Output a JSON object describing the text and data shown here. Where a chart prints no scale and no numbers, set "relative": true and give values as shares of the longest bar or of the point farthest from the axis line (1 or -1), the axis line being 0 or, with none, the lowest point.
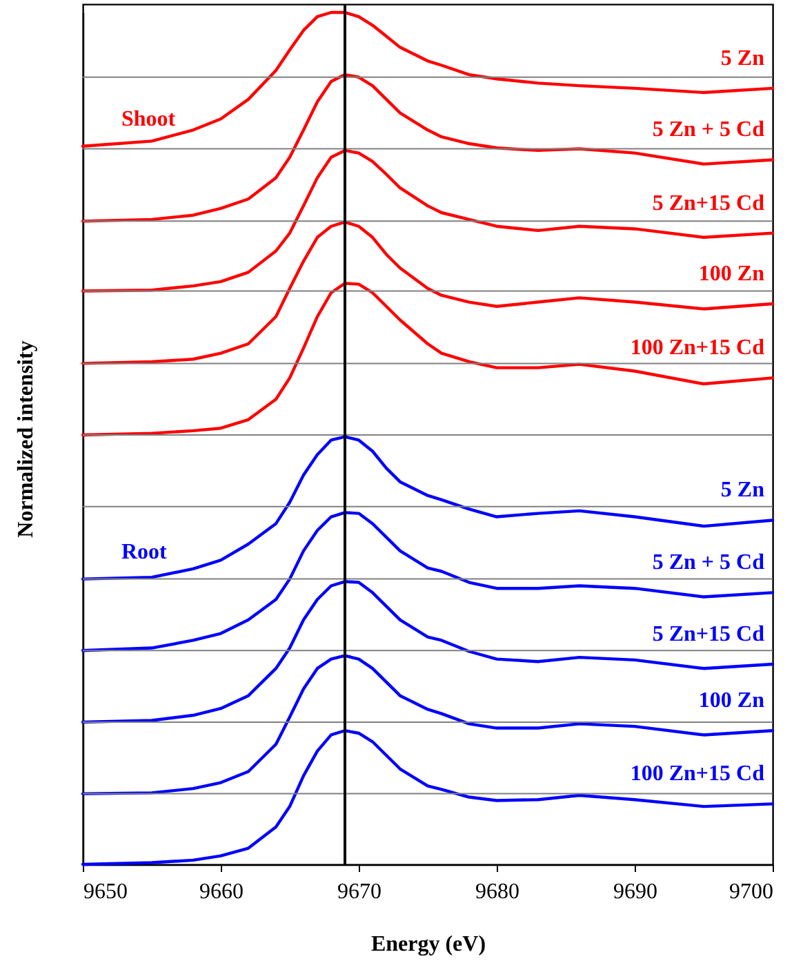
{
  "chart_data": {
    "type": "line",
    "relative": true,
    "xlabel": "Energy (eV)",
    "ylabel": "Normalized intensity",
    "xlim": [
      9650,
      9700
    ],
    "xticks": [
      9650,
      9660,
      9670,
      9680,
      9690,
      9700
    ],
    "tick_labels": "x",
    "x": [
      9650,
      9655,
      9658,
      9660,
      9662,
      9664,
      9665,
      9666,
      9667,
      9668,
      9669,
      9670,
      9671,
      9672,
      9673,
      9675,
      9676,
      9678,
      9680,
      9683,
      9686,
      9690,
      9695,
      9700
    ],
    "series": [
      {
        "name": "5 Zn",
        "color": "#ff0000",
        "values": [
          0.843,
          0.849,
          0.862,
          0.875,
          0.898,
          0.932,
          0.956,
          0.979,
          0.995,
          1,
          1,
          0.995,
          0.985,
          0.972,
          0.959,
          0.943,
          0.938,
          0.927,
          0.922,
          0.917,
          0.914,
          0.911,
          0.906,
          0.911
        ]
      },
      {
        "name": "5 Zn + 5 Cd",
        "color": "#ff0000",
        "values": [
          0.755,
          0.757,
          0.762,
          0.77,
          0.781,
          0.806,
          0.83,
          0.862,
          0.895,
          0.919,
          0.927,
          0.924,
          0.914,
          0.898,
          0.882,
          0.862,
          0.854,
          0.846,
          0.841,
          0.838,
          0.84,
          0.835,
          0.822,
          0.827
        ]
      },
      {
        "name": "5 Zn+15 Cd",
        "color": "#ff0000",
        "values": [
          0.673,
          0.674,
          0.679,
          0.684,
          0.695,
          0.72,
          0.741,
          0.773,
          0.806,
          0.83,
          0.838,
          0.835,
          0.825,
          0.81,
          0.794,
          0.773,
          0.765,
          0.757,
          0.749,
          0.744,
          0.749,
          0.746,
          0.736,
          0.741
        ]
      },
      {
        "name": "100 Zn",
        "color": "#ff0000",
        "values": [
          0.588,
          0.59,
          0.593,
          0.6,
          0.611,
          0.643,
          0.676,
          0.708,
          0.736,
          0.749,
          0.754,
          0.749,
          0.736,
          0.716,
          0.7,
          0.676,
          0.668,
          0.66,
          0.655,
          0.66,
          0.665,
          0.66,
          0.652,
          0.658
        ]
      },
      {
        "name": "100 Zn+15 Cd",
        "color": "#ff0000",
        "values": [
          0.504,
          0.506,
          0.509,
          0.512,
          0.522,
          0.546,
          0.571,
          0.606,
          0.643,
          0.671,
          0.682,
          0.681,
          0.671,
          0.655,
          0.639,
          0.611,
          0.6,
          0.59,
          0.583,
          0.583,
          0.587,
          0.579,
          0.564,
          0.571
        ]
      },
      {
        "name": "5 Zn",
        "color": "#0000ff",
        "values": [
          0.335,
          0.337,
          0.347,
          0.357,
          0.376,
          0.4,
          0.425,
          0.457,
          0.481,
          0.498,
          0.502,
          0.498,
          0.485,
          0.465,
          0.449,
          0.433,
          0.428,
          0.417,
          0.408,
          0.412,
          0.415,
          0.408,
          0.397,
          0.404
        ]
      },
      {
        "name": "5 Zn + 5 Cd",
        "color": "#0000ff",
        "values": [
          0.251,
          0.254,
          0.263,
          0.271,
          0.287,
          0.311,
          0.335,
          0.368,
          0.392,
          0.408,
          0.413,
          0.412,
          0.4,
          0.384,
          0.368,
          0.348,
          0.344,
          0.331,
          0.324,
          0.324,
          0.327,
          0.324,
          0.314,
          0.319
        ]
      },
      {
        "name": "5 Zn+15 Cd",
        "color": "#0000ff",
        "values": [
          0.167,
          0.169,
          0.175,
          0.183,
          0.198,
          0.23,
          0.254,
          0.287,
          0.311,
          0.327,
          0.332,
          0.331,
          0.319,
          0.303,
          0.287,
          0.267,
          0.263,
          0.25,
          0.241,
          0.238,
          0.243,
          0.24,
          0.23,
          0.235
        ]
      },
      {
        "name": "100 Zn",
        "color": "#0000ff",
        "values": [
          0.083,
          0.084,
          0.089,
          0.096,
          0.109,
          0.141,
          0.173,
          0.206,
          0.23,
          0.241,
          0.245,
          0.241,
          0.23,
          0.214,
          0.198,
          0.182,
          0.177,
          0.165,
          0.16,
          0.16,
          0.165,
          0.162,
          0.152,
          0.157
        ]
      },
      {
        "name": "100 Zn+15 Cd",
        "color": "#0000ff",
        "values": [
          0,
          0.002,
          0.005,
          0.01,
          0.019,
          0.044,
          0.068,
          0.104,
          0.133,
          0.152,
          0.157,
          0.154,
          0.144,
          0.128,
          0.112,
          0.092,
          0.088,
          0.079,
          0.075,
          0.076,
          0.081,
          0.076,
          0.068,
          0.071
        ]
      }
    ],
    "ref_lines": [
      {
        "axis": "y",
        "value": 0.924,
        "color": "#808080"
      },
      {
        "axis": "y",
        "value": 0.84,
        "color": "#808080"
      },
      {
        "axis": "y",
        "value": 0.755,
        "color": "#808080"
      },
      {
        "axis": "y",
        "value": 0.673,
        "color": "#808080"
      },
      {
        "axis": "y",
        "value": 0.588,
        "color": "#808080"
      },
      {
        "axis": "y",
        "value": 0.504,
        "color": "#808080"
      },
      {
        "axis": "y",
        "value": 0.42,
        "color": "#808080"
      },
      {
        "axis": "y",
        "value": 0.335,
        "color": "#808080"
      },
      {
        "axis": "y",
        "value": 0.251,
        "color": "#808080"
      },
      {
        "axis": "y",
        "value": 0.167,
        "color": "#808080"
      },
      {
        "axis": "y",
        "value": 0.083,
        "color": "#808080"
      },
      {
        "axis": "x",
        "value": 9669,
        "color": "#000000"
      }
    ],
    "annotations": [
      "Shoot",
      "Root"
    ]
  }
}
